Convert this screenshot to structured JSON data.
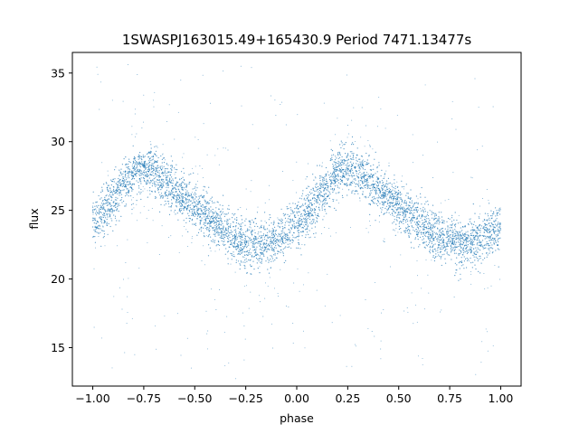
{
  "chart_data": {
    "type": "scatter",
    "title": "1SWASPJ163015.49+165430.9 Period 7471.13477s",
    "xlabel": "phase",
    "ylabel": "flux",
    "xlim": [
      -1.1,
      1.1
    ],
    "ylim": [
      12.2,
      36.5
    ],
    "xticks": [
      -1.0,
      -0.75,
      -0.5,
      -0.25,
      0.0,
      0.25,
      0.5,
      0.75,
      1.0
    ],
    "xtick_labels": [
      "−1.00",
      "−0.75",
      "−0.50",
      "−0.25",
      "0.00",
      "0.25",
      "0.50",
      "0.75",
      "1.00"
    ],
    "yticks": [
      15,
      20,
      25,
      30,
      35
    ],
    "ytick_labels": [
      "15",
      "20",
      "25",
      "30",
      "35"
    ],
    "grid": false,
    "marker_color": "#1f77b4",
    "series": [
      {
        "trend_points": [
          {
            "x": -1.0,
            "y": 24.0
          },
          {
            "x": -0.9,
            "y": 25.8
          },
          {
            "x": -0.8,
            "y": 27.8
          },
          {
            "x": -0.75,
            "y": 28.0
          },
          {
            "x": -0.7,
            "y": 27.8
          },
          {
            "x": -0.6,
            "y": 26.5
          },
          {
            "x": -0.5,
            "y": 25.3
          },
          {
            "x": -0.4,
            "y": 24.0
          },
          {
            "x": -0.3,
            "y": 23.0
          },
          {
            "x": -0.2,
            "y": 22.5
          },
          {
            "x": -0.1,
            "y": 22.8
          },
          {
            "x": 0.0,
            "y": 24.0
          },
          {
            "x": 0.1,
            "y": 25.8
          },
          {
            "x": 0.2,
            "y": 27.8
          },
          {
            "x": 0.25,
            "y": 28.0
          },
          {
            "x": 0.3,
            "y": 27.8
          },
          {
            "x": 0.4,
            "y": 26.5
          },
          {
            "x": 0.5,
            "y": 25.3
          },
          {
            "x": 0.6,
            "y": 24.0
          },
          {
            "x": 0.7,
            "y": 23.0
          },
          {
            "x": 0.8,
            "y": 22.5
          },
          {
            "x": 0.9,
            "y": 22.8
          },
          {
            "x": 1.0,
            "y": 24.0
          }
        ]
      }
    ]
  }
}
